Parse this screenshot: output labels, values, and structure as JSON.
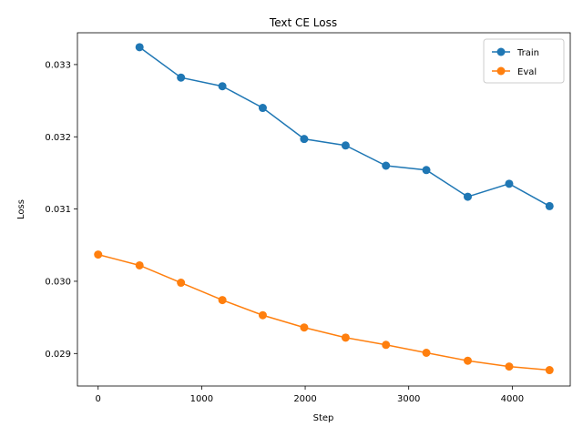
{
  "chart_data": {
    "type": "line",
    "title": "Text CE Loss",
    "xlabel": "Step",
    "ylabel": "Loss",
    "xlim": [
      -200,
      4560
    ],
    "ylim": [
      0.02855,
      0.03344
    ],
    "xticks": [
      0,
      1000,
      2000,
      3000,
      4000
    ],
    "yticks": [
      0.029,
      0.03,
      0.031,
      0.032,
      0.033
    ],
    "xtick_labels": [
      "0",
      "1000",
      "2000",
      "3000",
      "4000"
    ],
    "ytick_labels": [
      "0.029",
      "0.030",
      "0.031",
      "0.032",
      "0.033"
    ],
    "grid": false,
    "legend_position": "upper right",
    "series": [
      {
        "name": "Train",
        "color": "#1f77b4",
        "marker": "circle",
        "x": [
          400,
          800,
          1200,
          1590,
          1990,
          2390,
          2780,
          3170,
          3570,
          3970,
          4360
        ],
        "y": [
          0.03324,
          0.03282,
          0.0327,
          0.0324,
          0.03197,
          0.03188,
          0.0316,
          0.03154,
          0.03117,
          0.03135,
          0.03104
        ]
      },
      {
        "name": "Eval",
        "color": "#ff7f0e",
        "marker": "circle",
        "x": [
          0,
          400,
          800,
          1200,
          1590,
          1990,
          2390,
          2780,
          3170,
          3570,
          3970,
          4360
        ],
        "y": [
          0.03037,
          0.03022,
          0.02998,
          0.02974,
          0.02953,
          0.02936,
          0.02922,
          0.02912,
          0.02901,
          0.0289,
          0.02882,
          0.02877
        ]
      }
    ]
  }
}
